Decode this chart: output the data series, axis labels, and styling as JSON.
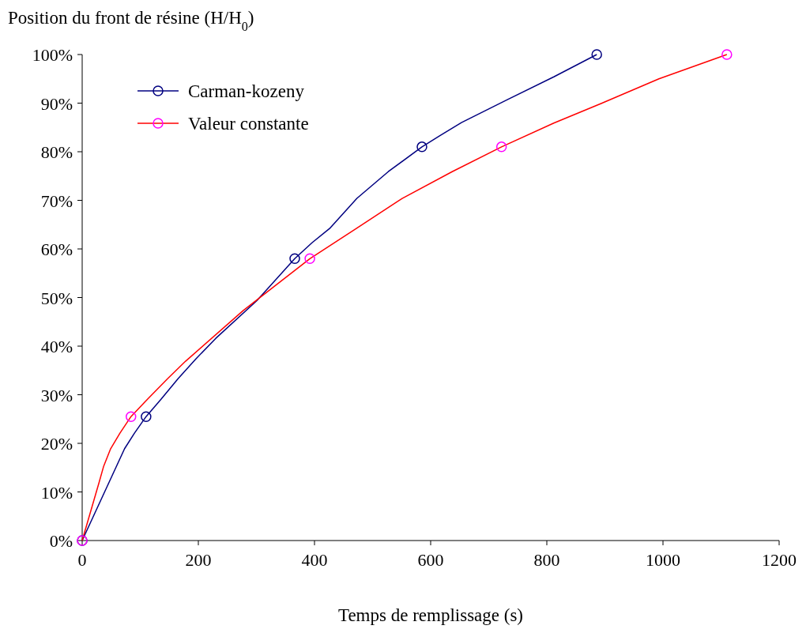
{
  "chart_data": {
    "type": "line",
    "title": "Position du front de résine (H/H$_{0}$)",
    "xlabel": "Temps de remplissage (s)",
    "xlim": [
      0,
      1200
    ],
    "xticks": [
      0,
      200,
      400,
      600,
      800,
      1000,
      1200
    ],
    "ylim": [
      0,
      100
    ],
    "yticks": [
      {
        "value": 0,
        "label": "0%"
      },
      {
        "value": 10,
        "label": "10%"
      },
      {
        "value": 20,
        "label": "20%"
      },
      {
        "value": 30,
        "label": "30%"
      },
      {
        "value": 40,
        "label": "40%"
      },
      {
        "value": 50,
        "label": "50%"
      },
      {
        "value": 60,
        "label": "60%"
      },
      {
        "value": 70,
        "label": "70%"
      },
      {
        "value": 80,
        "label": "80%"
      },
      {
        "value": 90,
        "label": "90%"
      },
      {
        "value": 100,
        "label": "100%"
      }
    ],
    "grid": false,
    "legend": "top left",
    "series": [
      {
        "name": "Carman-kozeny",
        "color": "#000080",
        "marker": "none",
        "x": [
          0,
          73,
          90,
          110,
          136,
          165,
          196,
          230,
          301,
          366,
          396,
          426,
          473,
          527,
          585,
          616,
          653,
          732,
          812,
          886
        ],
        "values": [
          0,
          18.9,
          22.1,
          25.5,
          29.1,
          33.3,
          37.4,
          41.6,
          49.4,
          58,
          61.3,
          64.2,
          70.4,
          75.9,
          81,
          83.3,
          86,
          90.7,
          95.4,
          100
        ]
      },
      {
        "name": "Valeur constante",
        "color": "#ff0000",
        "marker": "none",
        "x": [
          0,
          29,
          37,
          49,
          65,
          84,
          115,
          147,
          178,
          277,
          392,
          472,
          551,
          637,
          722,
          812,
          899,
          993,
          1110
        ],
        "values": [
          0,
          11.9,
          15.3,
          18.9,
          22.1,
          25.5,
          29.4,
          33.3,
          36.9,
          47.3,
          58,
          64.2,
          70.4,
          75.9,
          81,
          85.9,
          90.2,
          95,
          100
        ]
      },
      {
        "type": "scatter",
        "color": "#000080",
        "marker": "circle",
        "x": [
          0,
          110,
          366,
          585,
          886
        ],
        "values": [
          0,
          25.5,
          58,
          81,
          100
        ]
      },
      {
        "type": "scatter",
        "color": "#ff00ff",
        "marker": "circle",
        "x": [
          0,
          84,
          392,
          722,
          1110
        ],
        "values": [
          0,
          25.5,
          58,
          81,
          100
        ]
      }
    ]
  }
}
